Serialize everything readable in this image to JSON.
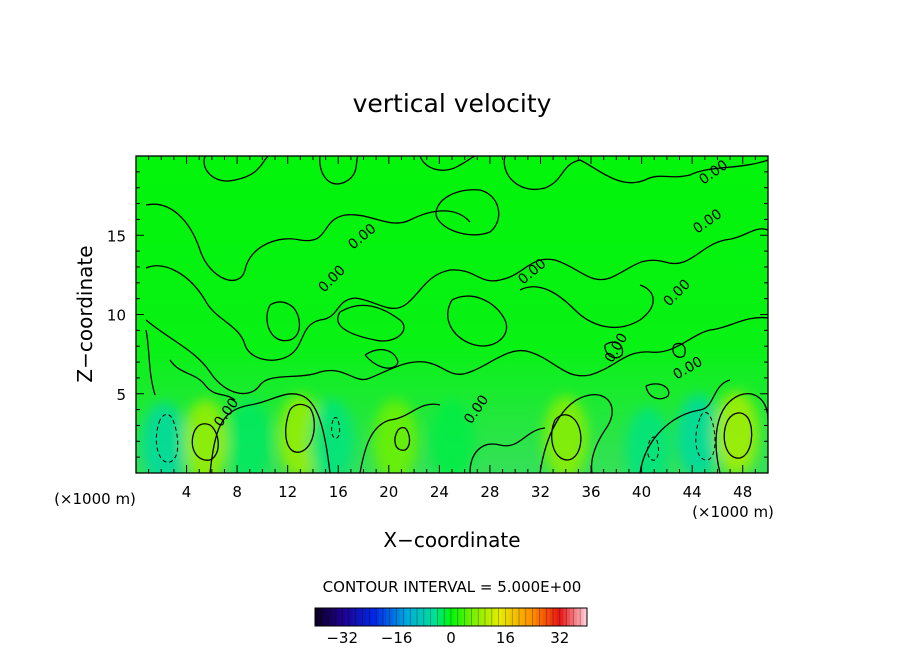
{
  "chart_data": {
    "type": "heatmap",
    "title": "vertical velocity",
    "xlabel": "X−coordinate",
    "ylabel": "Z−coordinate",
    "x_unit_label": "(×1000 m)",
    "x_unit_label_right": "(×1000 m)",
    "xlim": [
      0,
      50
    ],
    "ylim": [
      0,
      20
    ],
    "x_ticks": [
      4,
      8,
      12,
      16,
      20,
      24,
      28,
      32,
      36,
      40,
      44,
      48
    ],
    "y_ticks": [
      5,
      10,
      15
    ],
    "contour_interval_text": "CONTOUR INTERVAL = 5.000E+00",
    "contour_line_label": "0.00",
    "contour_zero_label_count": 10,
    "colorbar": {
      "min": -40,
      "max": 40,
      "tick_values": [
        -32,
        -16,
        0,
        16,
        32
      ],
      "tick_labels": [
        "−32",
        "−16",
        "0",
        "16",
        "32"
      ]
    },
    "background_value": 0,
    "features": [
      {
        "x": 2.2,
        "z": 1.8,
        "value": -6,
        "kind": "downdraft"
      },
      {
        "x": 5.5,
        "z": 2.0,
        "value": 9,
        "kind": "updraft"
      },
      {
        "x": 9.0,
        "z": 2.0,
        "value": -3,
        "kind": "downdraft"
      },
      {
        "x": 13.0,
        "z": 2.3,
        "value": 9,
        "kind": "updraft"
      },
      {
        "x": 15.5,
        "z": 2.0,
        "value": -4,
        "kind": "downdraft"
      },
      {
        "x": 20.5,
        "z": 2.0,
        "value": 6,
        "kind": "updraft"
      },
      {
        "x": 25.0,
        "z": 2.0,
        "value": -2,
        "kind": "downdraft"
      },
      {
        "x": 34.0,
        "z": 2.2,
        "value": 8,
        "kind": "updraft"
      },
      {
        "x": 40.5,
        "z": 1.5,
        "value": -4,
        "kind": "downdraft"
      },
      {
        "x": 44.5,
        "z": 2.3,
        "value": -6,
        "kind": "downdraft"
      },
      {
        "x": 47.5,
        "z": 2.5,
        "value": 10,
        "kind": "updraft"
      }
    ]
  }
}
